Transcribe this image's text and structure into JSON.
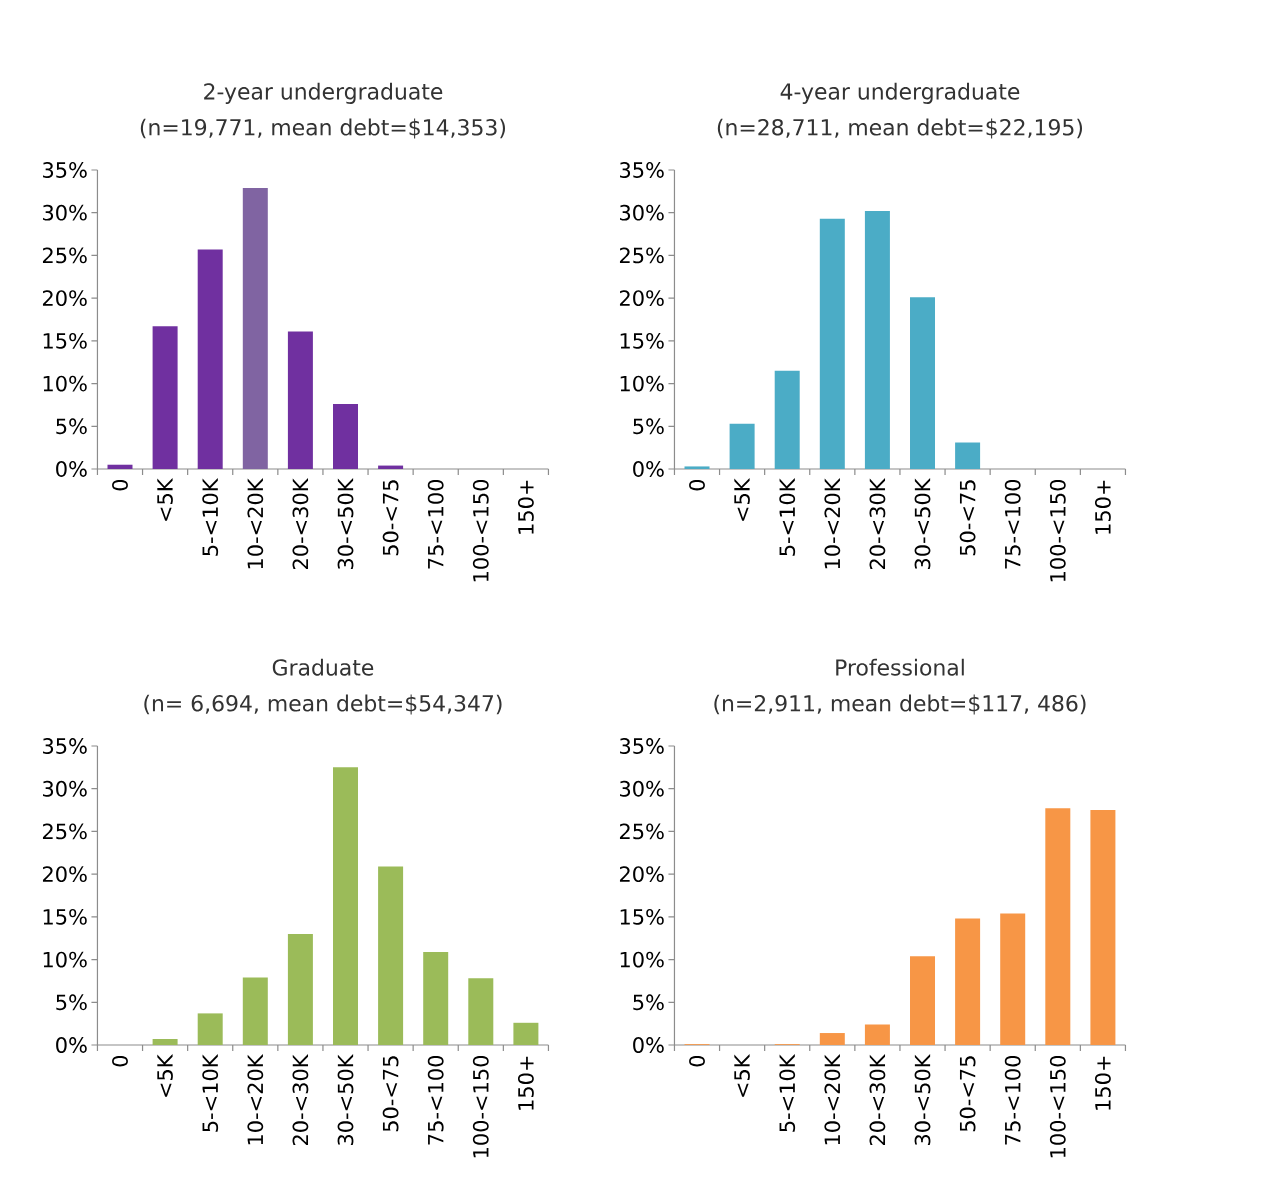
{
  "chart_data": [
    {
      "type": "bar",
      "title": "2-year undergraduate",
      "subtitle": "(n=19,771, mean debt=$14,353)",
      "categories": [
        "0",
        "<5K",
        "5-<10K",
        "10-<20K",
        "20-<30K",
        "30-<50K",
        "50-<75",
        "75-<100",
        "100-<150",
        "150+"
      ],
      "values": [
        0.5,
        16.7,
        25.7,
        32.9,
        16.1,
        7.6,
        0.4,
        0,
        0,
        0
      ],
      "colors": [
        "#7030a0",
        "#7030a0",
        "#7030a0",
        "#8064a2",
        "#7030a0",
        "#7030a0",
        "#7030a0",
        "#7030a0",
        "#7030a0",
        "#7030a0"
      ],
      "ylim": [
        0,
        35
      ],
      "yticks": [
        {
          "value": 0,
          "label": "0%"
        },
        {
          "value": 5,
          "label": "5%"
        },
        {
          "value": 10,
          "label": "10%"
        },
        {
          "value": 15,
          "label": "15%"
        },
        {
          "value": 20,
          "label": "20%"
        },
        {
          "value": 25,
          "label": "25%"
        },
        {
          "value": 30,
          "label": "30%"
        },
        {
          "value": 35,
          "label": "35%"
        }
      ]
    },
    {
      "type": "bar",
      "title": "4-year undergraduate",
      "subtitle": "(n=28,711, mean debt=$22,195)",
      "categories": [
        "0",
        "<5K",
        "5-<10K",
        "10-<20K",
        "20-<30K",
        "30-<50K",
        "50-<75",
        "75-<100",
        "100-<150",
        "150+"
      ],
      "values": [
        0.3,
        5.3,
        11.5,
        29.3,
        30.2,
        20.1,
        3.1,
        0,
        0,
        0
      ],
      "color": "#4bacc6",
      "ylim": [
        0,
        35
      ],
      "yticks": [
        {
          "value": 0,
          "label": "0%"
        },
        {
          "value": 5,
          "label": "5%"
        },
        {
          "value": 10,
          "label": "10%"
        },
        {
          "value": 15,
          "label": "15%"
        },
        {
          "value": 20,
          "label": "20%"
        },
        {
          "value": 25,
          "label": "25%"
        },
        {
          "value": 30,
          "label": "30%"
        },
        {
          "value": 35,
          "label": "35%"
        }
      ]
    },
    {
      "type": "bar",
      "title": "Graduate",
      "subtitle": "(n= 6,694, mean debt=$54,347)",
      "categories": [
        "0",
        "<5K",
        "5-<10K",
        "10-<20K",
        "20-<30K",
        "30-<50K",
        "50-<75",
        "75-<100",
        "100-<150",
        "150+"
      ],
      "values": [
        0,
        0.7,
        3.7,
        7.9,
        13.0,
        32.5,
        20.9,
        10.9,
        7.8,
        2.6
      ],
      "color": "#9bbb59",
      "ylim": [
        0,
        35
      ],
      "yticks": [
        {
          "value": 0,
          "label": "0%"
        },
        {
          "value": 5,
          "label": "5%"
        },
        {
          "value": 10,
          "label": "10%"
        },
        {
          "value": 15,
          "label": "15%"
        },
        {
          "value": 20,
          "label": "20%"
        },
        {
          "value": 25,
          "label": "25%"
        },
        {
          "value": 30,
          "label": "30%"
        },
        {
          "value": 35,
          "label": "35%"
        }
      ]
    },
    {
      "type": "bar",
      "title": "Professional",
      "subtitle": "(n=2,911, mean debt=$117, 486)",
      "categories": [
        "0",
        "<5K",
        "5-<10K",
        "10-<20K",
        "20-<30K",
        "30-<50K",
        "50-<75",
        "75-<100",
        "100-<150",
        "150+"
      ],
      "values": [
        0.1,
        0,
        0.1,
        1.4,
        2.4,
        10.4,
        14.8,
        15.4,
        27.7,
        27.5
      ],
      "color": "#f79646",
      "ylim": [
        0,
        35
      ],
      "yticks": [
        {
          "value": 0,
          "label": "0%"
        },
        {
          "value": 5,
          "label": "5%"
        },
        {
          "value": 10,
          "label": "10%"
        },
        {
          "value": 15,
          "label": "15%"
        },
        {
          "value": 20,
          "label": "20%"
        },
        {
          "value": 25,
          "label": "25%"
        },
        {
          "value": 30,
          "label": "30%"
        },
        {
          "value": 35,
          "label": "35%"
        }
      ]
    }
  ]
}
